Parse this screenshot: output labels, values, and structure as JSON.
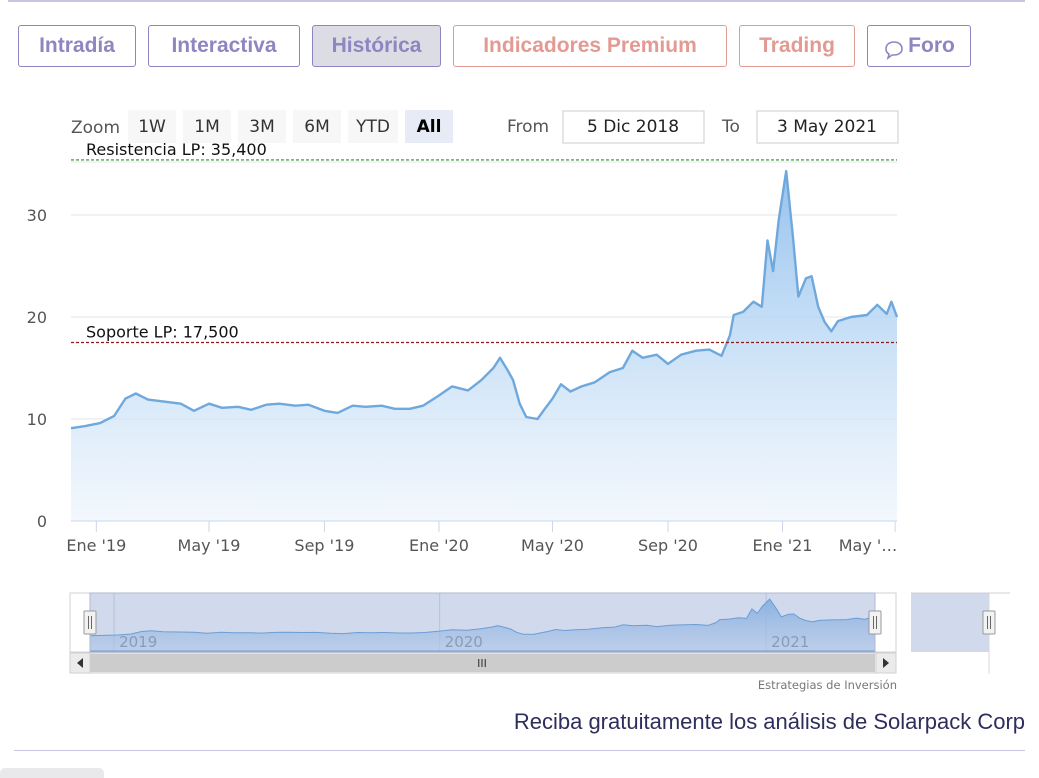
{
  "tabs": [
    {
      "label": "Intradía",
      "state": "normal"
    },
    {
      "label": "Interactiva",
      "state": "normal"
    },
    {
      "label": "Histórica",
      "state": "active"
    },
    {
      "label": "Indicadores Premium",
      "state": "red"
    },
    {
      "label": "Trading",
      "state": "red"
    },
    {
      "label": "Foro",
      "state": "normal",
      "icon": "speech-bubble-icon"
    }
  ],
  "colors": {
    "accent": "#8d86c0",
    "premium": "#e29a92",
    "line": "#6fa8dc",
    "resistance": "#2e8b2e",
    "support": "#8b1a1a"
  },
  "range_selector": {
    "zoom_label": "Zoom",
    "buttons": [
      "1W",
      "1M",
      "3M",
      "6M",
      "YTD",
      "All"
    ],
    "selected": "All",
    "from_label": "From",
    "from_value": "5 Dic 2018",
    "to_label": "To",
    "to_value": "3 May 2021"
  },
  "chart_data": {
    "type": "area",
    "ylim": [
      0,
      35
    ],
    "y_ticks": [
      "0",
      "10",
      "20",
      "30"
    ],
    "x_tick_labels": [
      "Ene '19",
      "May '19",
      "Sep '19",
      "Ene '20",
      "May '20",
      "Sep '20",
      "Ene '21",
      "May '…"
    ],
    "x_tick_dates": [
      "2019-01-01",
      "2019-05-01",
      "2019-09-01",
      "2020-01-01",
      "2020-05-01",
      "2020-09-01",
      "2021-01-01",
      "2021-05-01"
    ],
    "x_range": [
      "2018-12-05",
      "2021-05-03"
    ],
    "plot_lines": [
      {
        "label": "Resistencia LP: 35,400",
        "value": 35.4,
        "style": "dashed",
        "color": "#2e8b2e"
      },
      {
        "label": "Soporte LP: 17,500",
        "value": 17.5,
        "style": "dashed",
        "color": "#8b1a1a"
      }
    ],
    "series": [
      {
        "points": [
          [
            "2018-12-05",
            9.1
          ],
          [
            "2018-12-20",
            9.3
          ],
          [
            "2019-01-05",
            9.6
          ],
          [
            "2019-01-20",
            10.3
          ],
          [
            "2019-02-01",
            12.0
          ],
          [
            "2019-02-12",
            12.5
          ],
          [
            "2019-02-25",
            11.9
          ],
          [
            "2019-03-15",
            11.7
          ],
          [
            "2019-04-01",
            11.5
          ],
          [
            "2019-04-15",
            10.8
          ],
          [
            "2019-05-01",
            11.5
          ],
          [
            "2019-05-15",
            11.1
          ],
          [
            "2019-06-01",
            11.2
          ],
          [
            "2019-06-15",
            10.9
          ],
          [
            "2019-07-01",
            11.4
          ],
          [
            "2019-07-15",
            11.5
          ],
          [
            "2019-08-01",
            11.3
          ],
          [
            "2019-08-15",
            11.4
          ],
          [
            "2019-09-01",
            10.8
          ],
          [
            "2019-09-15",
            10.6
          ],
          [
            "2019-10-01",
            11.3
          ],
          [
            "2019-10-15",
            11.2
          ],
          [
            "2019-11-01",
            11.3
          ],
          [
            "2019-11-15",
            11.0
          ],
          [
            "2019-12-01",
            11.0
          ],
          [
            "2019-12-15",
            11.3
          ],
          [
            "2020-01-01",
            12.3
          ],
          [
            "2020-01-15",
            13.2
          ],
          [
            "2020-02-01",
            12.8
          ],
          [
            "2020-02-15",
            13.8
          ],
          [
            "2020-02-28",
            15.0
          ],
          [
            "2020-03-06",
            16.0
          ],
          [
            "2020-03-14",
            14.8
          ],
          [
            "2020-03-20",
            13.8
          ],
          [
            "2020-03-27",
            11.5
          ],
          [
            "2020-04-03",
            10.2
          ],
          [
            "2020-04-15",
            10.0
          ],
          [
            "2020-04-22",
            10.9
          ],
          [
            "2020-05-01",
            12.0
          ],
          [
            "2020-05-10",
            13.4
          ],
          [
            "2020-05-20",
            12.7
          ],
          [
            "2020-06-01",
            13.2
          ],
          [
            "2020-06-15",
            13.6
          ],
          [
            "2020-07-01",
            14.6
          ],
          [
            "2020-07-15",
            15.0
          ],
          [
            "2020-07-25",
            16.7
          ],
          [
            "2020-08-05",
            16.0
          ],
          [
            "2020-08-20",
            16.3
          ],
          [
            "2020-09-01",
            15.4
          ],
          [
            "2020-09-15",
            16.3
          ],
          [
            "2020-10-01",
            16.7
          ],
          [
            "2020-10-15",
            16.8
          ],
          [
            "2020-10-28",
            16.2
          ],
          [
            "2020-11-06",
            18.2
          ],
          [
            "2020-11-10",
            20.2
          ],
          [
            "2020-11-20",
            20.5
          ],
          [
            "2020-12-01",
            21.5
          ],
          [
            "2020-12-10",
            21.0
          ],
          [
            "2020-12-16",
            27.5
          ],
          [
            "2020-12-22",
            24.5
          ],
          [
            "2020-12-28",
            29.5
          ],
          [
            "2021-01-05",
            34.3
          ],
          [
            "2021-01-12",
            28.0
          ],
          [
            "2021-01-18",
            22.0
          ],
          [
            "2021-01-26",
            23.8
          ],
          [
            "2021-02-01",
            24.0
          ],
          [
            "2021-02-08",
            21.0
          ],
          [
            "2021-02-15",
            19.5
          ],
          [
            "2021-02-22",
            18.6
          ],
          [
            "2021-03-01",
            19.6
          ],
          [
            "2021-03-15",
            20.0
          ],
          [
            "2021-04-01",
            20.2
          ],
          [
            "2021-04-12",
            21.2
          ],
          [
            "2021-04-22",
            20.3
          ],
          [
            "2021-04-27",
            21.5
          ],
          [
            "2021-05-03",
            20.0
          ]
        ]
      }
    ],
    "navigator": {
      "year_labels": [
        "2019",
        "2020",
        "2021"
      ],
      "year_dates": [
        "2019-01-01",
        "2020-01-01",
        "2021-01-01"
      ],
      "scrollbar_grip": "III"
    },
    "credits": "Estrategias de Inversión"
  },
  "footer_text": "Reciba gratuitamente los análisis de Solarpack Corp"
}
